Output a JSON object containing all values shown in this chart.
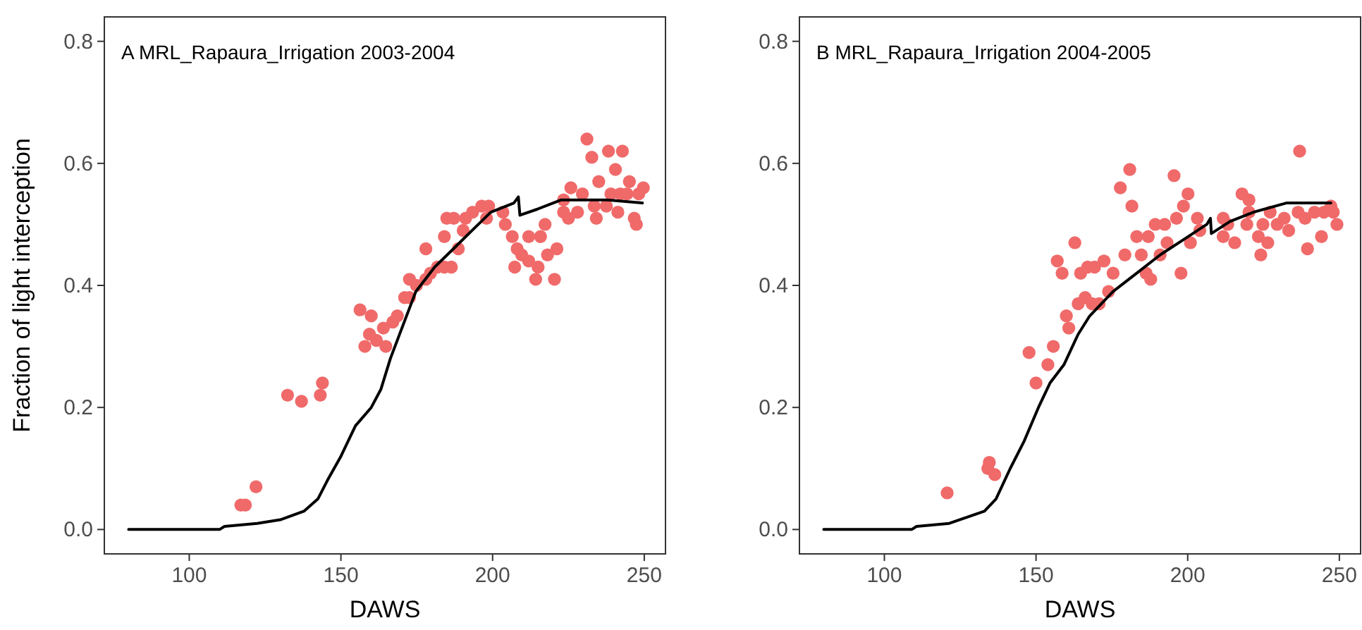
{
  "chart_data": [
    {
      "type": "scatter",
      "title": "A  MRL_Rapaura_Irrigation 2003-2004",
      "xlabel": "DAWS",
      "ylabel": "Fraction of light interception",
      "xlim": [
        72,
        257
      ],
      "ylim": [
        -0.04,
        0.84
      ],
      "xticks": [
        100,
        150,
        200,
        250
      ],
      "yticks": [
        {
          "value": 0,
          "label": "0.0"
        },
        {
          "value": 0.2,
          "label": "0.2"
        },
        {
          "value": 0.4,
          "label": "0.4"
        },
        {
          "value": 0.6,
          "label": "0.6"
        },
        {
          "value": 0.8,
          "label": "0.8"
        }
      ],
      "grid": false,
      "series": [
        {
          "type": "scatter",
          "color": "#f06a6a",
          "x": [
            117,
            118.5,
            122,
            132.4,
            137,
            143.2,
            143.9,
            156.3,
            160,
            157.9,
            159.4,
            161.7,
            164.8,
            164,
            167.1,
            168.6,
            171,
            172.6,
            174.9,
            172.6,
            178,
            179.5,
            181.8,
            184.1,
            186.4,
            178,
            184.1,
            188.7,
            190.3,
            184.9,
            187.2,
            191.1,
            193.4,
            196.4,
            198.7,
            198,
            203.4,
            204.2,
            206.5,
            211.9,
            215.8,
            217.3,
            208.1,
            209.6,
            211.9,
            215,
            207.3,
            214.2,
            220.4,
            218.1,
            221.2,
            223.4,
            225.8,
            223.4,
            225,
            228,
            229.6,
            231.1,
            232.7,
            235,
            234.2,
            233.5,
            238.2,
            240.5,
            242.8,
            237.5,
            239,
            241.3,
            242.1,
            245.1,
            244.3,
            246.7,
            247.4,
            248.2,
            249.7
          ],
          "values": [
            0.04,
            0.04,
            0.07,
            0.22,
            0.21,
            0.22,
            0.24,
            0.36,
            0.35,
            0.3,
            0.32,
            0.31,
            0.3,
            0.33,
            0.34,
            0.35,
            0.38,
            0.38,
            0.4,
            0.41,
            0.41,
            0.42,
            0.43,
            0.43,
            0.43,
            0.46,
            0.48,
            0.46,
            0.49,
            0.51,
            0.51,
            0.51,
            0.52,
            0.53,
            0.53,
            0.51,
            0.52,
            0.5,
            0.48,
            0.48,
            0.48,
            0.5,
            0.46,
            0.45,
            0.44,
            0.43,
            0.43,
            0.41,
            0.41,
            0.45,
            0.46,
            0.54,
            0.56,
            0.52,
            0.51,
            0.52,
            0.55,
            0.64,
            0.61,
            0.57,
            0.51,
            0.53,
            0.62,
            0.59,
            0.62,
            0.53,
            0.55,
            0.52,
            0.55,
            0.57,
            0.55,
            0.51,
            0.5,
            0.55,
            0.56
          ]
        },
        {
          "type": "line",
          "color": "#000000",
          "x": [
            80,
            110,
            111.6,
            122.4,
            130,
            137.8,
            142.4,
            145.5,
            150,
            154.8,
            160,
            163.2,
            166.3,
            170.1,
            174.7,
            180.9,
            187.1,
            193.2,
            199.4,
            207,
            208.5,
            209,
            214.8,
            222.5,
            230.2,
            237.9,
            249.4
          ],
          "values": [
            0,
            0,
            0.005,
            0.01,
            0.016,
            0.03,
            0.05,
            0.08,
            0.12,
            0.17,
            0.2,
            0.23,
            0.28,
            0.33,
            0.39,
            0.43,
            0.46,
            0.49,
            0.52,
            0.535,
            0.545,
            0.515,
            0.525,
            0.54,
            0.54,
            0.54,
            0.535
          ]
        }
      ]
    },
    {
      "type": "scatter",
      "title": "B  MRL_Rapaura_Irrigation 2004-2005",
      "xlabel": "DAWS",
      "xlim": [
        72,
        257
      ],
      "ylim": [
        -0.04,
        0.84
      ],
      "xticks": [
        100,
        150,
        200,
        250
      ],
      "yticks": [
        {
          "value": 0,
          "label": "0.0"
        },
        {
          "value": 0.2,
          "label": "0.2"
        },
        {
          "value": 0.4,
          "label": "0.4"
        },
        {
          "value": 0.6,
          "label": "0.6"
        },
        {
          "value": 0.8,
          "label": "0.8"
        }
      ],
      "grid": false,
      "series": [
        {
          "type": "scatter",
          "color": "#f06a6a",
          "x": [
            120.7,
            134.6,
            134.1,
            136.4,
            150,
            147.7,
            153.9,
            155.7,
            160.8,
            160,
            163.9,
            166.2,
            168.5,
            170.8,
            173.9,
            157,
            158.6,
            162.8,
            164.7,
            167,
            169.3,
            172.4,
            175.4,
            177.8,
            180.9,
            181.6,
            179.3,
            183.2,
            184.7,
            186.3,
            187.8,
            187,
            189.3,
            190.9,
            192.4,
            193.2,
            195.5,
            196.3,
            197.8,
            198.6,
            200.1,
            200.9,
            203.2,
            204,
            211.7,
            211.7,
            215.5,
            213.2,
            217.9,
            220.2,
            220.2,
            219.5,
            223.3,
            224.8,
            224.1,
            226.4,
            227.2,
            229.5,
            231.8,
            233.3,
            236.9,
            236.4,
            239.5,
            238.7,
            241.8,
            244.1,
            244.9,
            247.2,
            248,
            249.2
          ],
          "values": [
            0.06,
            0.11,
            0.1,
            0.09,
            0.24,
            0.29,
            0.27,
            0.3,
            0.33,
            0.35,
            0.37,
            0.38,
            0.37,
            0.37,
            0.39,
            0.44,
            0.42,
            0.47,
            0.42,
            0.43,
            0.43,
            0.44,
            0.42,
            0.56,
            0.59,
            0.53,
            0.45,
            0.48,
            0.45,
            0.42,
            0.41,
            0.48,
            0.5,
            0.45,
            0.5,
            0.47,
            0.58,
            0.51,
            0.42,
            0.53,
            0.55,
            0.47,
            0.51,
            0.49,
            0.51,
            0.48,
            0.47,
            0.5,
            0.55,
            0.54,
            0.52,
            0.5,
            0.48,
            0.5,
            0.45,
            0.47,
            0.52,
            0.5,
            0.51,
            0.49,
            0.62,
            0.52,
            0.46,
            0.51,
            0.52,
            0.48,
            0.52,
            0.53,
            0.52,
            0.5
          ]
        },
        {
          "type": "line",
          "color": "#000000",
          "x": [
            80,
            109,
            110.6,
            121.4,
            133,
            136.8,
            141.5,
            146.1,
            150.8,
            154.6,
            159.2,
            163.9,
            167.7,
            175.4,
            183.2,
            190.9,
            198.6,
            206.3,
            207.5,
            207.8,
            214,
            221.7,
            232.5,
            247.2
          ],
          "values": [
            0,
            0,
            0.005,
            0.01,
            0.03,
            0.05,
            0.1,
            0.145,
            0.2,
            0.24,
            0.27,
            0.32,
            0.35,
            0.39,
            0.42,
            0.45,
            0.475,
            0.5,
            0.51,
            0.485,
            0.505,
            0.52,
            0.535,
            0.535
          ]
        }
      ]
    }
  ]
}
